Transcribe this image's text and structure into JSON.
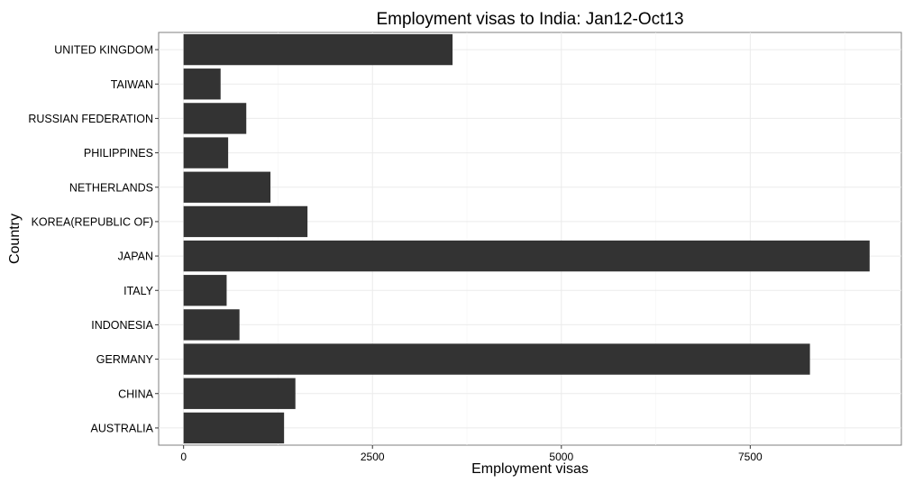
{
  "chart_data": {
    "type": "bar",
    "orientation": "horizontal",
    "title": "Employment visas to India: Jan12-Oct13",
    "xlabel": "Employment visas",
    "ylabel": "Country",
    "categories": [
      "UNITED KINGDOM",
      "TAIWAN",
      "RUSSIAN FEDERATION",
      "PHILIPPINES",
      "NETHERLANDS",
      "KOREA(REPUBLIC OF)",
      "JAPAN",
      "ITALY",
      "INDONESIA",
      "GERMANY",
      "CHINA",
      "AUSTRALIA"
    ],
    "values": [
      3560,
      490,
      830,
      590,
      1150,
      1640,
      9080,
      570,
      740,
      8290,
      1480,
      1330
    ],
    "xlim": [
      -330,
      9500
    ],
    "xticks": [
      0,
      2500,
      5000,
      7500
    ],
    "xtick_labels": [
      "0",
      "2500",
      "5000",
      "7500"
    ],
    "grid": true,
    "bar_color": "#333333",
    "grid_color": "#ebebeb"
  }
}
